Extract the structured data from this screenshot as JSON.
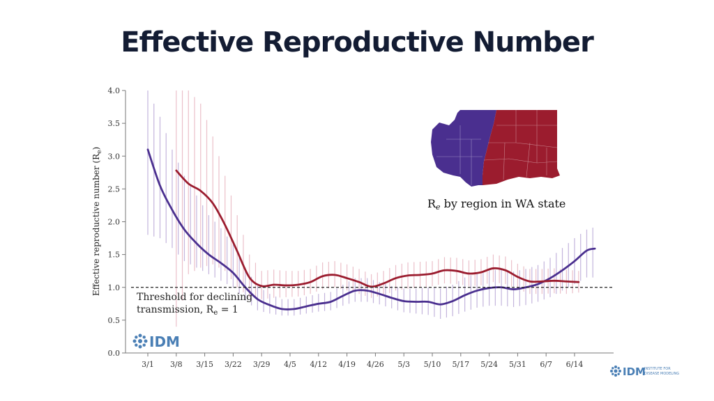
{
  "slide": {
    "title": "Effective Reproductive Number"
  },
  "chart_data": {
    "type": "line",
    "xlabel": "",
    "ylabel": "Effective reproductive number (R",
    "ylabel_sub": "e",
    "ylim": [
      0,
      4
    ],
    "yticks": [
      0.0,
      0.5,
      1.0,
      1.5,
      2.0,
      2.5,
      3.0,
      3.5,
      4.0
    ],
    "x_tick_labels": [
      "3/1",
      "3/8",
      "3/15",
      "3/22",
      "3/29",
      "4/5",
      "4/12",
      "4/19",
      "4/26",
      "5/3",
      "5/10",
      "5/17",
      "5/24",
      "5/31",
      "6/7",
      "6/14"
    ],
    "x_tick_days": [
      0,
      7,
      14,
      21,
      28,
      35,
      42,
      49,
      56,
      63,
      70,
      77,
      84,
      91,
      98,
      105
    ],
    "series": [
      {
        "color": "#4a2f8f",
        "band_color": "#b9a7d6",
        "x": [
          0,
          3,
          6,
          9,
          12,
          15,
          18,
          21,
          24,
          27,
          30,
          33,
          36,
          39,
          42,
          45,
          48,
          51,
          54,
          57,
          60,
          63,
          66,
          69,
          72,
          75,
          78,
          81,
          84,
          87,
          90,
          93,
          96,
          99,
          102,
          105,
          108,
          110
        ],
        "y": [
          3.1,
          2.55,
          2.18,
          1.88,
          1.67,
          1.5,
          1.37,
          1.22,
          1.0,
          0.82,
          0.73,
          0.67,
          0.67,
          0.71,
          0.75,
          0.78,
          0.87,
          0.95,
          0.95,
          0.9,
          0.84,
          0.79,
          0.78,
          0.78,
          0.74,
          0.79,
          0.88,
          0.95,
          0.99,
          1.0,
          0.97,
          1.0,
          1.05,
          1.14,
          1.26,
          1.4,
          1.56,
          1.59
        ],
        "lo": [
          1.8,
          1.75,
          1.6,
          1.4,
          1.3,
          1.2,
          1.1,
          1.0,
          0.8,
          0.65,
          0.6,
          0.57,
          0.57,
          0.6,
          0.63,
          0.65,
          0.72,
          0.78,
          0.78,
          0.74,
          0.68,
          0.62,
          0.6,
          0.58,
          0.52,
          0.56,
          0.63,
          0.69,
          0.72,
          0.72,
          0.7,
          0.73,
          0.78,
          0.85,
          0.95,
          1.05,
          1.15,
          1.15
        ],
        "hi": [
          4.0,
          3.6,
          3.1,
          2.7,
          2.4,
          2.1,
          1.9,
          1.65,
          1.3,
          1.02,
          0.9,
          0.82,
          0.82,
          0.86,
          0.9,
          0.93,
          1.04,
          1.14,
          1.14,
          1.08,
          1.02,
          0.98,
          0.98,
          1.0,
          0.98,
          1.04,
          1.15,
          1.22,
          1.26,
          1.27,
          1.24,
          1.28,
          1.34,
          1.45,
          1.6,
          1.75,
          1.88,
          1.92
        ]
      },
      {
        "color": "#9b1c2e",
        "band_color": "#e8b4bf",
        "x": [
          7,
          10,
          13,
          16,
          19,
          22,
          25,
          28,
          31,
          34,
          37,
          40,
          43,
          46,
          49,
          52,
          55,
          58,
          61,
          64,
          67,
          70,
          73,
          76,
          79,
          82,
          85,
          88,
          91,
          94,
          97,
          100,
          103,
          106
        ],
        "y": [
          2.78,
          2.58,
          2.47,
          2.28,
          1.95,
          1.55,
          1.15,
          1.02,
          1.04,
          1.03,
          1.04,
          1.08,
          1.17,
          1.19,
          1.14,
          1.08,
          1.01,
          1.06,
          1.14,
          1.18,
          1.19,
          1.21,
          1.26,
          1.25,
          1.21,
          1.23,
          1.29,
          1.26,
          1.16,
          1.09,
          1.09,
          1.1,
          1.09,
          1.08
        ],
        "lo": [
          0.4,
          1.2,
          1.3,
          1.35,
          1.25,
          1.0,
          0.85,
          0.82,
          0.84,
          0.85,
          0.86,
          0.9,
          0.97,
          1.0,
          0.95,
          0.9,
          0.84,
          0.88,
          0.95,
          0.98,
          1.0,
          1.02,
          1.06,
          1.05,
          1.02,
          1.03,
          1.08,
          1.05,
          0.97,
          0.9,
          0.9,
          0.91,
          0.9,
          0.92
        ],
        "hi": [
          4.0,
          4.0,
          3.8,
          3.3,
          2.7,
          2.1,
          1.5,
          1.25,
          1.27,
          1.25,
          1.25,
          1.28,
          1.38,
          1.4,
          1.35,
          1.28,
          1.2,
          1.25,
          1.34,
          1.38,
          1.39,
          1.4,
          1.46,
          1.45,
          1.41,
          1.43,
          1.5,
          1.47,
          1.36,
          1.28,
          1.28,
          1.29,
          1.27,
          1.25
        ]
      }
    ],
    "threshold": {
      "y": 1.0,
      "label_line1": "Threshold for declining",
      "label_line2": "transmission, R",
      "label_sub": "e",
      "label_tail": " = 1"
    },
    "map_label": "R",
    "map_label_sub": "e",
    "map_label_tail": " by region in WA state"
  },
  "logos": {
    "chart_logo": "IDM",
    "corner_logo": "IDM",
    "corner_small1": "INSTITUTE FOR",
    "corner_small2": "DISEASE MODELING"
  }
}
